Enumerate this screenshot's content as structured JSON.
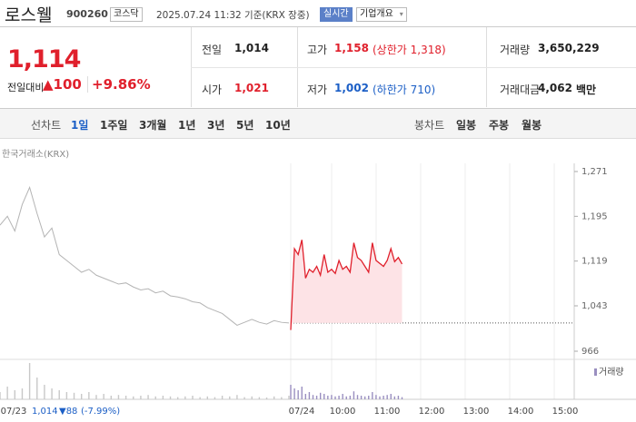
{
  "header": {
    "name": "로스웰",
    "code": "900260",
    "market": "코스닥",
    "time": "2025.07.24 11:32 기준(KRX 장중)",
    "realtime": "실시간",
    "company_info": "기업개요"
  },
  "quote": {
    "price": "1,114",
    "change_label": "전일대비",
    "change": "▲100",
    "change_rate": "+9.86%",
    "stats": [
      {
        "label": "전일",
        "value": "1,014"
      },
      {
        "label": "고가",
        "value": "1,158",
        "note": "(상한가 1,318)",
        "color": "#e0202c"
      },
      {
        "label": "거래량",
        "value": "3,650,229"
      },
      {
        "label": "시가",
        "value": "1,021",
        "color": "#e0202c"
      },
      {
        "label": "저가",
        "value": "1,002",
        "note": "(하한가 710)",
        "color": "#1c5fc6"
      },
      {
        "label": "거래대금",
        "value": "4,062",
        "unit": "백만"
      }
    ]
  },
  "tabs": {
    "line_label": "선차트",
    "line": [
      "1일",
      "1주일",
      "3개월",
      "1년",
      "3년",
      "5년",
      "10년"
    ],
    "selected_index": 0,
    "candle_label": "봉차트",
    "candle": [
      "일봉",
      "주봉",
      "월봉"
    ]
  },
  "chart_data": {
    "type": "line",
    "source": "한국거래소(KRX)",
    "ylim": [
      966,
      1271
    ],
    "yticks": [
      {
        "value": 1271,
        "label": "1,271"
      },
      {
        "value": 1195,
        "label": "1,195"
      },
      {
        "value": 1119,
        "label": "1,119"
      },
      {
        "value": 1043,
        "label": "1,043"
      },
      966
    ],
    "prev_close": 1014,
    "xlabels": [
      "07/23",
      "07/24",
      "10:00",
      "11:00",
      "12:00",
      "13:00",
      "14:00",
      "15:00"
    ],
    "prev_summary": {
      "close": "1,014",
      "change": "▼88",
      "rate": "(-7.99%)"
    },
    "series": [
      {
        "color": "#b4b4b4",
        "values": [
          1180,
          1195,
          1170,
          1215,
          1244,
          1200,
          1160,
          1175,
          1130,
          1120,
          1110,
          1100,
          1105,
          1095,
          1090,
          1085,
          1080,
          1082,
          1075,
          1070,
          1072,
          1065,
          1068,
          1060,
          1058,
          1055,
          1050,
          1048,
          1040,
          1035,
          1030,
          1020,
          1010,
          1015,
          1020,
          1015,
          1012,
          1018,
          1015,
          1014
        ]
      },
      {
        "color": "#e0202c",
        "fill": "#fde3e6",
        "values": [
          1002,
          1140,
          1130,
          1155,
          1090,
          1105,
          1100,
          1110,
          1095,
          1130,
          1100,
          1105,
          1098,
          1120,
          1105,
          1110,
          1100,
          1150,
          1125,
          1120,
          1110,
          1100,
          1150,
          1120,
          1115,
          1110,
          1120,
          1140,
          1118,
          1125,
          1114
        ]
      }
    ],
    "volume": {
      "name": "거래량",
      "colors": [
        "#c8c8c8",
        "#9a8fc0"
      ],
      "series": [
        [
          20,
          35,
          25,
          30,
          100,
          60,
          40,
          30,
          25,
          20,
          18,
          15,
          20,
          12,
          15,
          10,
          12,
          10,
          8,
          10,
          12,
          8,
          10,
          8,
          6,
          8,
          10,
          6,
          8,
          6,
          10,
          8,
          12,
          6,
          8,
          6,
          5,
          8,
          6,
          10
        ],
        [
          40,
          30,
          25,
          35,
          15,
          20,
          12,
          10,
          18,
          15,
          10,
          12,
          8,
          10,
          15,
          8,
          10,
          22,
          12,
          10,
          8,
          10,
          20,
          12,
          8,
          10,
          12,
          15,
          8,
          10,
          6
        ]
      ]
    }
  }
}
